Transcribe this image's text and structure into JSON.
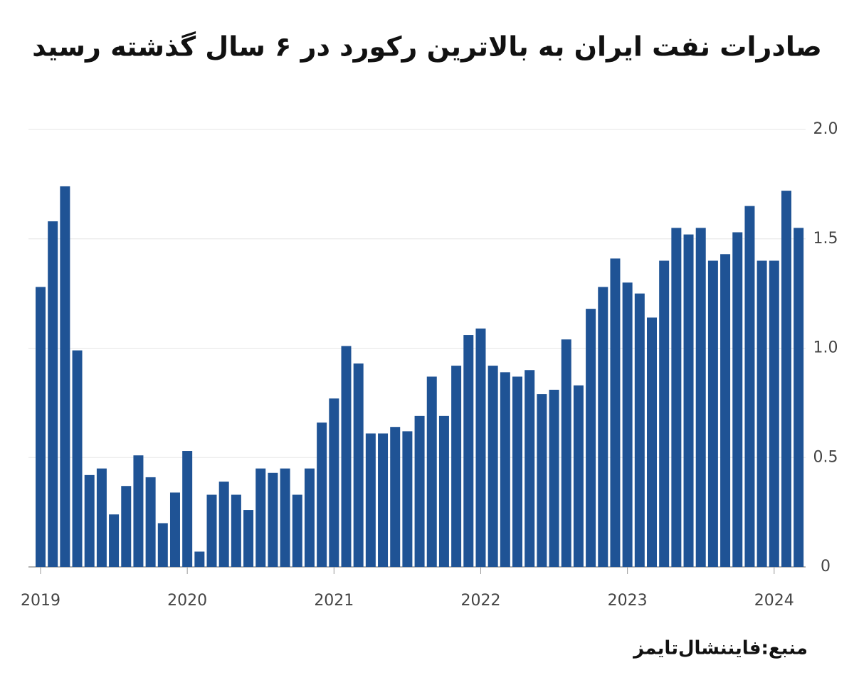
{
  "chart_data": {
    "type": "bar",
    "title": "صادرات نفت ایران به بالاترین رکورد در ۶ سال گذشته رسید",
    "source": "منبع:فایننشال‌تایمز",
    "categories": [
      "2019",
      null,
      null,
      null,
      null,
      null,
      null,
      null,
      null,
      null,
      null,
      null,
      "2020",
      null,
      null,
      null,
      null,
      null,
      null,
      null,
      null,
      null,
      null,
      null,
      "2021",
      null,
      null,
      null,
      null,
      null,
      null,
      null,
      null,
      null,
      null,
      null,
      "2022",
      null,
      null,
      null,
      null,
      null,
      null,
      null,
      null,
      null,
      null,
      null,
      "2023",
      null,
      null,
      null,
      null,
      null,
      null,
      null,
      null,
      null,
      null,
      null,
      "2024",
      null,
      null
    ],
    "values": [
      1.28,
      1.58,
      1.74,
      0.99,
      0.42,
      0.45,
      0.24,
      0.37,
      0.51,
      0.41,
      0.2,
      0.34,
      0.53,
      0.07,
      0.33,
      0.39,
      0.33,
      0.26,
      0.45,
      0.43,
      0.45,
      0.33,
      0.45,
      0.66,
      0.77,
      1.01,
      0.93,
      0.61,
      0.61,
      0.64,
      0.62,
      0.69,
      0.87,
      0.69,
      0.92,
      1.06,
      1.09,
      0.92,
      0.89,
      0.87,
      0.9,
      0.79,
      0.81,
      1.04,
      0.83,
      1.18,
      1.28,
      1.41,
      1.3,
      1.25,
      1.14,
      1.4,
      1.55,
      1.52,
      1.55,
      1.4,
      1.43,
      1.53,
      1.65,
      1.4,
      1.4,
      1.72,
      1.55
    ],
    "color": "#1f5395",
    "ylim": [
      0,
      2
    ],
    "yticks": [
      0,
      0.5,
      {
        "value": 1,
        "label": "1.0"
      },
      1.5,
      {
        "value": 2,
        "label": "2.0"
      }
    ],
    "grid": true
  }
}
